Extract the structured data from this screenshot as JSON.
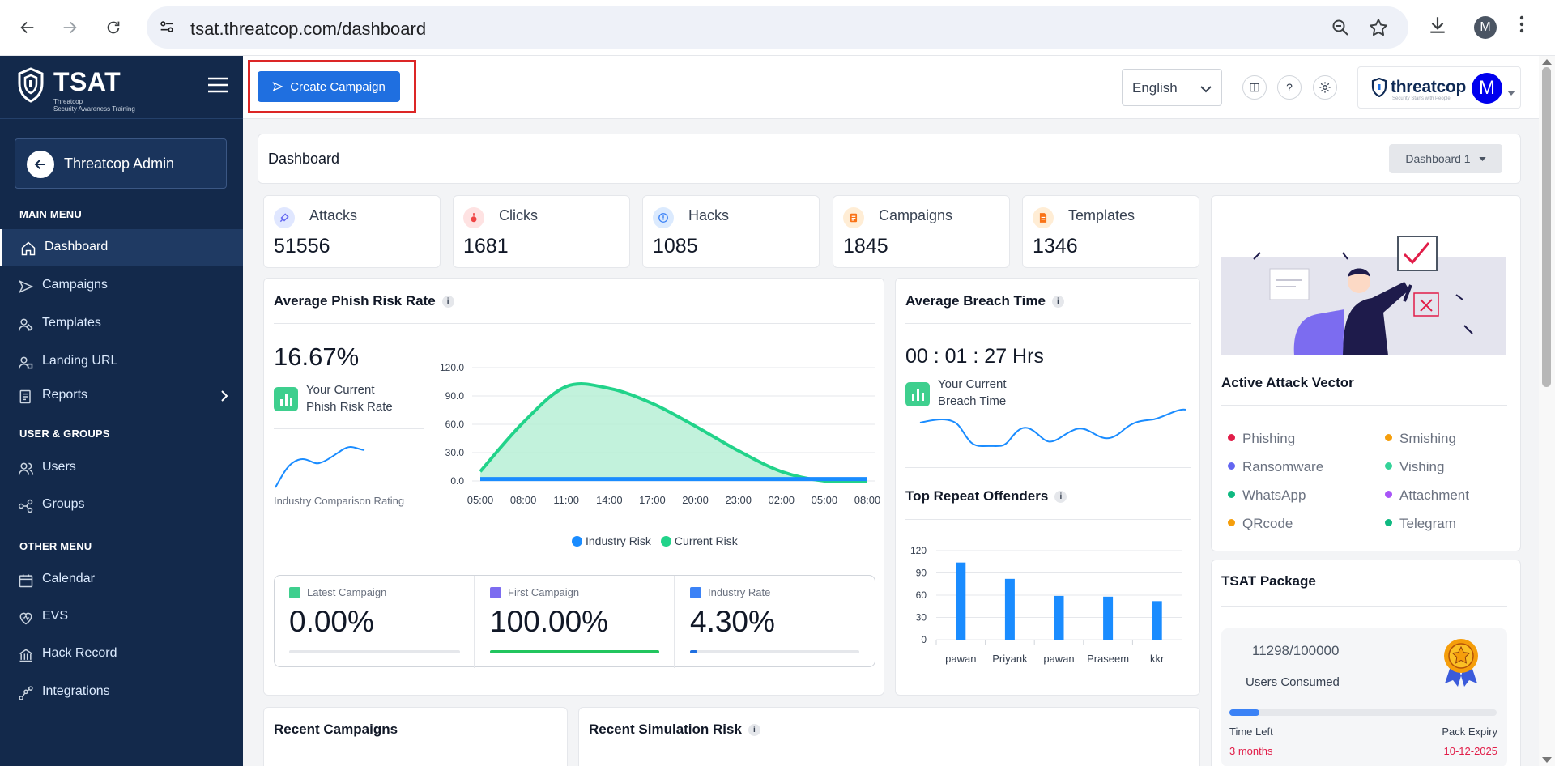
{
  "browser": {
    "url": "tsat.threatcop.com/dashboard",
    "profile_initial": "M"
  },
  "sidebar": {
    "brand_name": "TSAT",
    "brand_sub_1": "Threatcop",
    "brand_sub_2": "Security Awareness Training",
    "admin_name": "Threatcop Admin",
    "headings": {
      "main": "MAIN MENU",
      "users": "USER & GROUPS",
      "other": "OTHER MENU"
    },
    "items": [
      {
        "label": "Dashboard",
        "icon": "home-icon"
      },
      {
        "label": "Campaigns",
        "icon": "campaign-icon"
      },
      {
        "label": "Templates",
        "icon": "templates-icon"
      },
      {
        "label": "Landing URL",
        "icon": "landing-url-icon"
      },
      {
        "label": "Reports",
        "icon": "reports-icon"
      },
      {
        "label": "Users",
        "icon": "users-icon"
      },
      {
        "label": "Groups",
        "icon": "groups-icon"
      },
      {
        "label": "Calendar",
        "icon": "calendar-icon"
      },
      {
        "label": "EVS",
        "icon": "evs-icon"
      },
      {
        "label": "Hack Record",
        "icon": "hack-record-icon"
      },
      {
        "label": "Integrations",
        "icon": "integrations-icon"
      }
    ]
  },
  "header": {
    "create_campaign": "Create Campaign",
    "language": "English",
    "help": "?",
    "threatcop_word": "threatcop",
    "threatcop_tag": "Security Starts with People",
    "avatar_initial": "M"
  },
  "dashboard": {
    "title": "Dashboard",
    "selector": "Dashboard 1"
  },
  "stats": [
    {
      "label": "Attacks",
      "value": "51556",
      "color": "#6366f1"
    },
    {
      "label": "Clicks",
      "value": "1681",
      "color": "#ef4444"
    },
    {
      "label": "Hacks",
      "value": "1085",
      "color": "#3b82f6"
    },
    {
      "label": "Campaigns",
      "value": "1845",
      "color": "#f97316"
    },
    {
      "label": "Templates",
      "value": "1346",
      "color": "#f97316"
    }
  ],
  "phish": {
    "title": "Average Phish Risk Rate",
    "rate": "16.67%",
    "your_current_1": "Your Current",
    "your_current_2": "Phish Risk Rate",
    "industry_label": "Industry Comparison Rating",
    "latest_label": "Latest Campaign",
    "latest_value": "0.00%",
    "latest_pct": 0,
    "first_label": "First Campaign",
    "first_value": "100.00%",
    "first_pct": 100,
    "industry_rate_label": "Industry Rate",
    "industry_rate_value": "4.30%",
    "industry_rate_pct": 4.3
  },
  "breach": {
    "title": "Average Breach Time",
    "time": "00 : 01 : 27 Hrs",
    "your_current_1": "Your Current",
    "your_current_2": "Breach Time"
  },
  "offenders": {
    "title": "Top Repeat Offenders"
  },
  "vector": {
    "title": "Active Attack Vector",
    "items": [
      {
        "label": "Phishing",
        "color": "#e11d48"
      },
      {
        "label": "Smishing",
        "color": "#f59e0b"
      },
      {
        "label": "Ransomware",
        "color": "#6366f1"
      },
      {
        "label": "Vishing",
        "color": "#34d399"
      },
      {
        "label": "WhatsApp",
        "color": "#10b981"
      },
      {
        "label": "Attachment",
        "color": "#a855f7"
      },
      {
        "label": "QRcode",
        "color": "#f59e0b"
      },
      {
        "label": "Telegram",
        "color": "#10b981"
      }
    ]
  },
  "package": {
    "title": "TSAT Package",
    "users": "11298/100000",
    "users_label": "Users Consumed",
    "users_fraction": 0.113,
    "time_left_label": "Time Left",
    "time_left": "3 months",
    "expiry_label": "Pack Expiry",
    "expiry": "10-12-2025"
  },
  "recent": {
    "campaigns": "Recent Campaigns",
    "simulation": "Recent Simulation Risk"
  },
  "chart_data": [
    {
      "type": "area",
      "ylim": [
        0,
        120
      ],
      "yticks": [
        "120.0",
        "90.0",
        "60.0",
        "30.0",
        "0.0"
      ],
      "x": [
        "05:00",
        "08:00",
        "11:00",
        "14:00",
        "17:00",
        "20:00",
        "23:00",
        "02:00",
        "05:00",
        "08:00"
      ],
      "series": [
        {
          "name": "Industry Risk",
          "color": "#1a8cff",
          "values": [
            2,
            2,
            2,
            2,
            2,
            2,
            2,
            2,
            2,
            2
          ]
        },
        {
          "name": "Current Risk",
          "color": "#22d38a",
          "values": [
            10,
            62,
            100,
            98,
            82,
            58,
            32,
            10,
            0,
            0
          ]
        }
      ]
    },
    {
      "type": "bar",
      "ylim": [
        0,
        120
      ],
      "yticks": [
        "120",
        "90",
        "60",
        "30",
        "0"
      ],
      "categories": [
        "pawan",
        "Priyank",
        "pawan",
        "Praseem",
        "kkr"
      ],
      "values": [
        104,
        82,
        59,
        58,
        52
      ],
      "color": "#1a8cff"
    }
  ]
}
